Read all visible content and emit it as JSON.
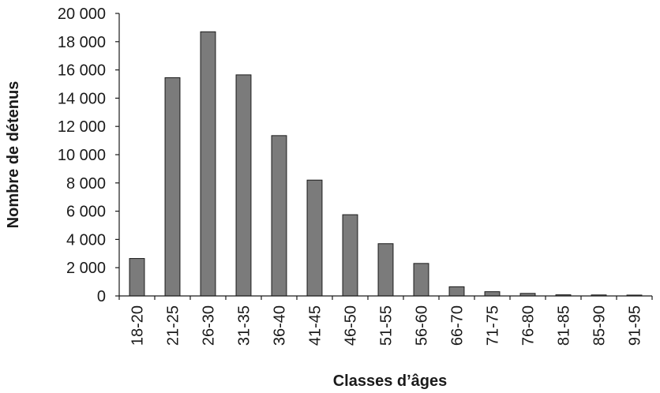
{
  "chart_data": {
    "type": "bar",
    "title": "",
    "xlabel": "Classes d’âges",
    "ylabel": "Nombre de détenus",
    "categories": [
      "18-20",
      "21-25",
      "26-30",
      "31-35",
      "36-40",
      "41-45",
      "46-50",
      "51-55",
      "56-60",
      "66-70",
      "71-75",
      "76-80",
      "81-85",
      "85-90",
      "91-95"
    ],
    "values": [
      2650,
      15450,
      18700,
      15650,
      11350,
      8200,
      5750,
      3700,
      2300,
      650,
      300,
      180,
      80,
      70,
      60
    ],
    "ylim": [
      0,
      20000
    ],
    "yticks": [
      0,
      2000,
      4000,
      6000,
      8000,
      10000,
      12000,
      14000,
      16000,
      18000,
      20000
    ],
    "ytick_labels": [
      "0",
      "2 000",
      "4 000",
      "6 000",
      "8 000",
      "10 000",
      "12 000",
      "14 000",
      "16 000",
      "18 000",
      "20 000"
    ],
    "grid": false,
    "legend": "none",
    "colors": {
      "bar": "#7b7b7b",
      "bar_outline": "#1a1a1a",
      "axis": "#1a1a1a"
    }
  }
}
